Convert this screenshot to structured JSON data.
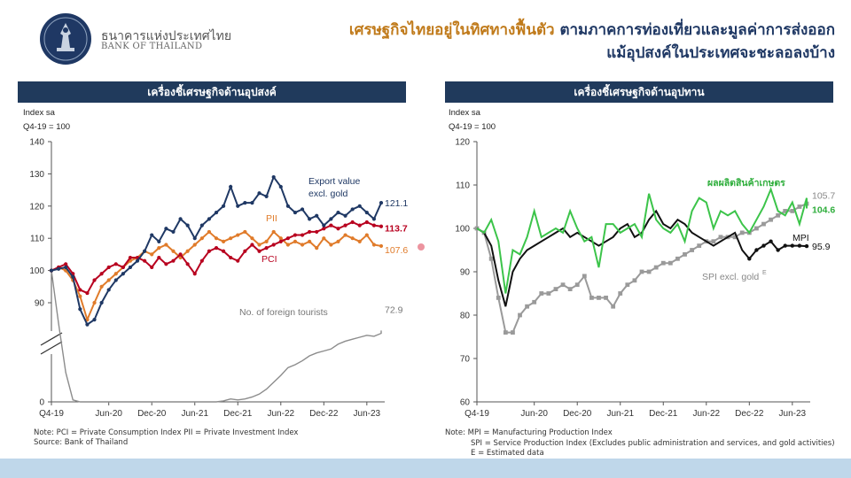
{
  "header": {
    "org_th": "ธนาคารแห่งประเทศไทย",
    "org_en": "BANK OF THAILAND",
    "title_part1": "เศรษฐกิจไทยอยู่ในทิศทางฟื้นตัว",
    "title_part2": " ตามภาคการท่องเที่ยวและมูลค่าการส่งออก",
    "title_line2": "แม้อุปสงค์ในประเทศจะชะลอลงบ้าง",
    "accent_color": "#c07a1a",
    "navy_color": "#1f3864"
  },
  "left_panel": {
    "title": "เครื่องชี้เศรษฐกิจด้านอุปสงค์",
    "note1": "Note: PCI = Private Consumption Index    PII = Private Investment Index",
    "note2": "Source: Bank of Thailand"
  },
  "right_panel": {
    "title": "เครื่องชี้เศรษฐกิจด้านอุปทาน",
    "note1": "Note: MPI = Manufacturing Production Index",
    "note2": "SPI = Service Production Index (Excludes public administration and services, and gold activities)",
    "note3": "E = Estimated data"
  },
  "chart_data": [
    {
      "type": "line",
      "ylabel": "Index sa",
      "ylabel2": "Q4-19 = 100",
      "ylim": [
        0,
        140
      ],
      "y_axis_break": true,
      "yticks": [
        0,
        90,
        100,
        110,
        120,
        130,
        140
      ],
      "x_tick_labels": [
        "Q4-19",
        "Jun-20",
        "Dec-20",
        "Jun-21",
        "Dec-21",
        "Jun-22",
        "Dec-22",
        "Jun-23"
      ],
      "x_tick_positions": [
        0,
        8,
        14,
        20,
        26,
        32,
        38,
        44
      ],
      "grid": false,
      "series": [
        {
          "name": "Export value excl. gold",
          "label": "Export value",
          "label2": "excl. gold",
          "color": "#1f3864",
          "end_label": "121.1",
          "values": [
            100,
            100.5,
            101,
            98,
            88,
            79,
            84,
            90,
            94,
            97,
            99,
            101,
            103,
            106,
            111,
            109,
            113,
            112,
            116,
            114,
            110,
            114,
            116,
            118,
            120,
            126,
            120,
            121,
            121,
            124,
            123,
            129,
            126,
            120,
            118,
            119,
            116,
            117,
            114,
            116,
            118,
            117,
            119,
            120,
            118,
            116,
            121
          ]
        },
        {
          "name": "PII",
          "label": "PII",
          "color": "#e07b2a",
          "end_label": "107.6",
          "values": [
            100,
            101,
            100,
            97,
            92,
            84,
            90,
            95,
            97,
            99,
            101,
            103,
            104,
            106,
            105,
            107,
            108,
            106,
            104,
            106,
            108,
            110,
            112,
            110,
            109,
            110,
            111,
            112,
            110,
            108,
            109,
            112,
            110,
            108,
            109,
            108,
            109,
            107,
            110,
            108,
            109,
            111,
            110,
            109,
            111,
            108,
            107.6
          ]
        },
        {
          "name": "PCI",
          "label": "PCI",
          "color": "#b8001f",
          "end_label": "113.7",
          "values": [
            100,
            101,
            102,
            99,
            94,
            93,
            97,
            99,
            101,
            102,
            101,
            104,
            104,
            103,
            101,
            104,
            102,
            103,
            105,
            102,
            99,
            103,
            106,
            107,
            106,
            104,
            103,
            106,
            108,
            106,
            107,
            108,
            109,
            110,
            111,
            111,
            112,
            112,
            113,
            114,
            113,
            114,
            115,
            114,
            115,
            114,
            113.7
          ]
        },
        {
          "name": "No. of foreign tourists",
          "label": "No. of foreign tourists",
          "color": "#8c8c8c",
          "end_label": "72.9",
          "values": [
            100,
            80,
            30,
            2,
            0,
            0,
            0,
            0,
            0,
            0,
            0,
            0,
            0,
            0,
            0,
            0,
            0,
            0,
            0,
            0,
            0,
            0,
            0,
            0,
            1,
            3,
            2,
            3,
            5,
            8,
            13,
            20,
            27,
            35,
            38,
            42,
            47,
            50,
            52,
            54,
            59,
            62,
            64,
            66,
            68,
            67,
            70,
            72.9
          ]
        }
      ]
    },
    {
      "type": "line",
      "ylabel": "Index sa",
      "ylabel2": "Q4-19 = 100",
      "ylim": [
        60,
        120
      ],
      "yticks": [
        60,
        70,
        80,
        90,
        100,
        110,
        120
      ],
      "x_tick_labels": [
        "Q4-19",
        "Jun-20",
        "Dec-20",
        "Jun-21",
        "Dec-21",
        "Jun-22",
        "Dec-22",
        "Jun-23"
      ],
      "x_tick_positions": [
        0,
        8,
        14,
        20,
        26,
        32,
        38,
        44
      ],
      "grid": false,
      "series": [
        {
          "name": "ผลผลิตสินค้าเกษตร",
          "label": "ผลผลิตสินค้าเกษตร",
          "color": "#3cc44a",
          "end_label": "104.6",
          "values": [
            100,
            99,
            102,
            97,
            85,
            95,
            94,
            98,
            104,
            98,
            99,
            100,
            99,
            104,
            100,
            97,
            98,
            91,
            101,
            101,
            99,
            100,
            101,
            98,
            108,
            102,
            100,
            99,
            101,
            97,
            104,
            107,
            106,
            100,
            104,
            103,
            104,
            101,
            99,
            102,
            105,
            109,
            104,
            103,
            106,
            101,
            107,
            104.6
          ]
        },
        {
          "name": "MPI",
          "label": "MPI",
          "color": "#111111",
          "end_label": "95.9",
          "values": [
            100,
            99,
            96,
            88,
            82,
            90,
            93,
            95,
            96,
            97,
            98,
            99,
            100,
            98,
            99,
            98,
            97,
            96,
            97,
            98,
            100,
            101,
            98,
            99,
            102,
            104,
            101,
            100,
            102,
            101,
            99,
            98,
            97,
            96,
            97,
            98,
            99,
            95,
            93,
            95,
            96,
            97,
            95,
            96,
            96,
            96,
            95.9
          ]
        },
        {
          "name": "SPI excl. gold",
          "label": "SPI excl. gold",
          "label_sup": "E",
          "color": "#9a9a9a",
          "end_label": "105.7",
          "values": [
            100,
            99,
            93,
            84,
            76,
            76,
            80,
            82,
            83,
            85,
            85,
            86,
            87,
            86,
            87,
            89,
            84,
            84,
            84,
            82,
            85,
            87,
            88,
            90,
            90,
            91,
            92,
            92,
            93,
            94,
            95,
            96,
            97,
            97,
            98,
            98,
            98,
            99,
            99,
            100,
            101,
            102,
            103,
            104,
            104,
            105,
            105.7
          ]
        }
      ]
    }
  ]
}
